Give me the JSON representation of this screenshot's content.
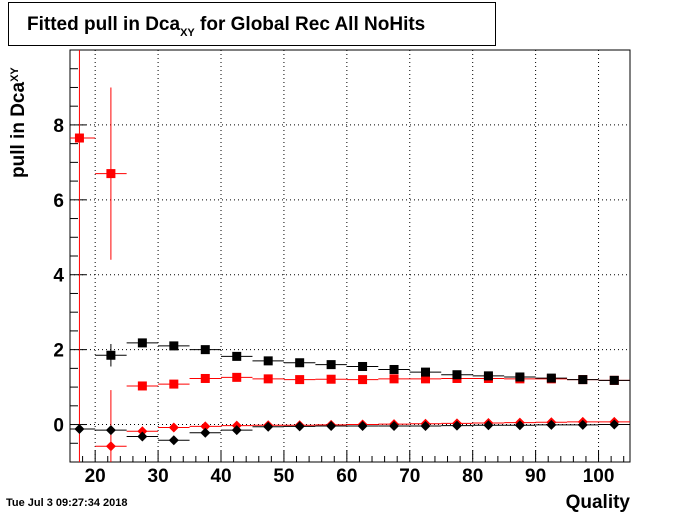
{
  "chart_data": {
    "type": "scatter",
    "title": {
      "main": "Fitted pull in Dca",
      "sub": "XY",
      "rest": " for Global Rec All NoHits"
    },
    "ylabel": {
      "main": "pull in Dca",
      "sub": "XY"
    },
    "xlabel": "Quality",
    "xlim": [
      16,
      105
    ],
    "ylim": [
      -1,
      10
    ],
    "x_ticks": [
      20,
      30,
      40,
      50,
      60,
      70,
      80,
      90,
      100
    ],
    "y_ticks": [
      0,
      2,
      4,
      6,
      8
    ],
    "grid": true,
    "series": [
      {
        "color": "#ff0000",
        "marker": "square",
        "x": [
          17.5,
          22.5,
          27.5,
          32.5,
          37.5,
          42.5,
          47.5,
          52.5,
          57.5,
          62.5,
          67.5,
          72.5,
          77.5,
          82.5,
          87.5,
          92.5,
          97.5,
          102.5
        ],
        "y": [
          7.65,
          6.7,
          1.03,
          1.08,
          1.23,
          1.26,
          1.22,
          1.2,
          1.21,
          1.2,
          1.22,
          1.22,
          1.23,
          1.23,
          1.22,
          1.22,
          1.2,
          1.18
        ],
        "yerr": [
          10,
          2.3,
          0.05,
          0.05,
          0.04,
          0.04,
          0.03,
          0.03,
          0.03,
          0.03,
          0.03,
          0.03,
          0.03,
          0.03,
          0.03,
          0.03,
          0.03,
          0.03
        ]
      },
      {
        "color": "#000000",
        "marker": "square",
        "x": [
          22.5,
          27.5,
          32.5,
          37.5,
          42.5,
          47.5,
          52.5,
          57.5,
          62.5,
          67.5,
          72.5,
          77.5,
          82.5,
          87.5,
          92.5,
          97.5,
          102.5
        ],
        "y": [
          1.85,
          2.18,
          2.1,
          2.0,
          1.82,
          1.7,
          1.65,
          1.6,
          1.55,
          1.47,
          1.4,
          1.33,
          1.3,
          1.27,
          1.24,
          1.2,
          1.18
        ],
        "yerr": [
          0.3,
          0.06,
          0.05,
          0.04,
          0.04,
          0.03,
          0.03,
          0.03,
          0.03,
          0.03,
          0.03,
          0.03,
          0.03,
          0.03,
          0.03,
          0.03,
          0.03
        ]
      },
      {
        "color": "#ff0000",
        "marker": "diamond",
        "x": [
          22.5,
          27.5,
          32.5,
          37.5,
          42.5,
          47.5,
          52.5,
          57.5,
          62.5,
          67.5,
          72.5,
          77.5,
          82.5,
          87.5,
          92.5,
          97.5,
          102.5
        ],
        "y": [
          -0.58,
          -0.18,
          -0.08,
          -0.05,
          -0.03,
          -0.02,
          -0.02,
          -0.01,
          0.0,
          0.01,
          0.02,
          0.03,
          0.04,
          0.05,
          0.06,
          0.07,
          0.07
        ],
        "yerr": [
          1.5,
          0.05,
          0.04,
          0.03,
          0.03,
          0.02,
          0.02,
          0.02,
          0.02,
          0.02,
          0.02,
          0.02,
          0.02,
          0.02,
          0.02,
          0.02,
          0.02
        ]
      },
      {
        "color": "#000000",
        "marker": "diamond",
        "x": [
          17.5,
          22.5,
          27.5,
          32.5,
          37.5,
          42.5,
          47.5,
          52.5,
          57.5,
          62.5,
          67.5,
          72.5,
          77.5,
          82.5,
          87.5,
          92.5,
          97.5,
          102.5
        ],
        "y": [
          -0.12,
          -0.15,
          -0.32,
          -0.42,
          -0.22,
          -0.15,
          -0.06,
          -0.05,
          -0.04,
          -0.04,
          -0.04,
          -0.04,
          -0.03,
          -0.02,
          -0.02,
          -0.01,
          -0.01,
          0.0
        ],
        "yerr": [
          0.05,
          0.05,
          0.05,
          0.05,
          0.04,
          0.04,
          0.03,
          0.03,
          0.03,
          0.03,
          0.03,
          0.03,
          0.03,
          0.03,
          0.03,
          0.03,
          0.03,
          0.03
        ]
      }
    ]
  },
  "footer": {
    "timestamp": "Tue Jul  3 09:27:34 2018"
  }
}
